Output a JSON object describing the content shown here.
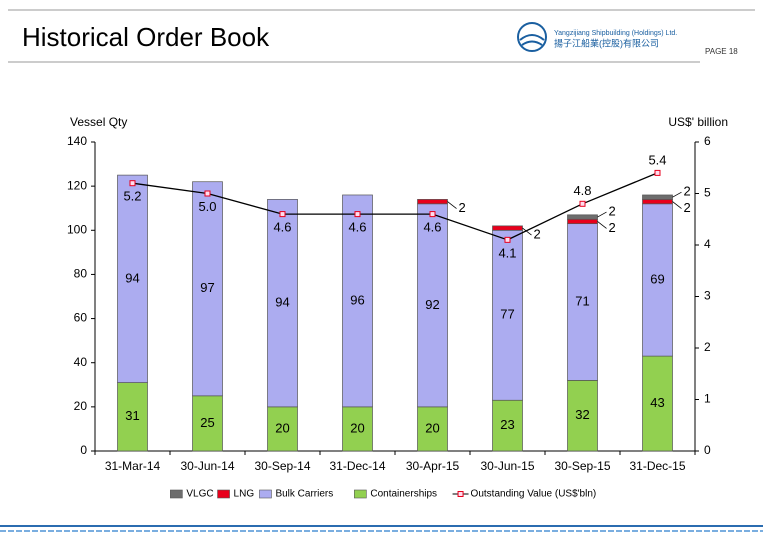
{
  "header": {
    "title": "Historical Order Book",
    "company_en": "Yangzijiang Shipbuilding (Holdings) Ltd.",
    "company_cn": "揚子江船業(控股)有限公司",
    "page": "PAGE 18"
  },
  "chart_data": {
    "type": "bar",
    "stacked": true,
    "ylabel": "Vessel Qty",
    "y2label": "US$' billion",
    "categories": [
      "31-Mar-14",
      "30-Jun-14",
      "30-Sep-14",
      "31-Dec-14",
      "30-Apr-15",
      "30-Jun-15",
      "30-Sep-15",
      "31-Dec-15"
    ],
    "ylim": [
      0,
      140
    ],
    "yticks": [
      0,
      20,
      40,
      60,
      80,
      100,
      120,
      140
    ],
    "y2lim": [
      0,
      6
    ],
    "y2ticks": [
      0,
      1,
      2,
      3,
      4,
      5,
      6
    ],
    "legend": "bottom",
    "series": [
      {
        "name": "Containerships",
        "color": "#92d050",
        "values": [
          31,
          25,
          20,
          20,
          20,
          23,
          32,
          43
        ]
      },
      {
        "name": "Bulk Carriers",
        "color": "#acacf0",
        "values": [
          94,
          97,
          94,
          96,
          92,
          77,
          71,
          69
        ]
      },
      {
        "name": "LNG",
        "color": "#e8001c",
        "values": [
          null,
          null,
          null,
          null,
          2,
          2,
          2,
          2
        ]
      },
      {
        "name": "VLGC",
        "color": "#6d6d6d",
        "values": [
          null,
          null,
          null,
          null,
          null,
          null,
          2,
          2
        ]
      },
      {
        "name": "Outstanding Value (US$'bln)",
        "type": "line",
        "axis": "y2",
        "color": "#000000",
        "marker_color": "#e8001c",
        "values": [
          5.2,
          5.0,
          4.6,
          4.6,
          4.6,
          4.1,
          4.8,
          5.4
        ],
        "value_labels": [
          "5.2",
          "5.0",
          "4.6",
          "4.6",
          "4.6",
          "4.1",
          "4.8",
          "5.4"
        ]
      }
    ]
  }
}
